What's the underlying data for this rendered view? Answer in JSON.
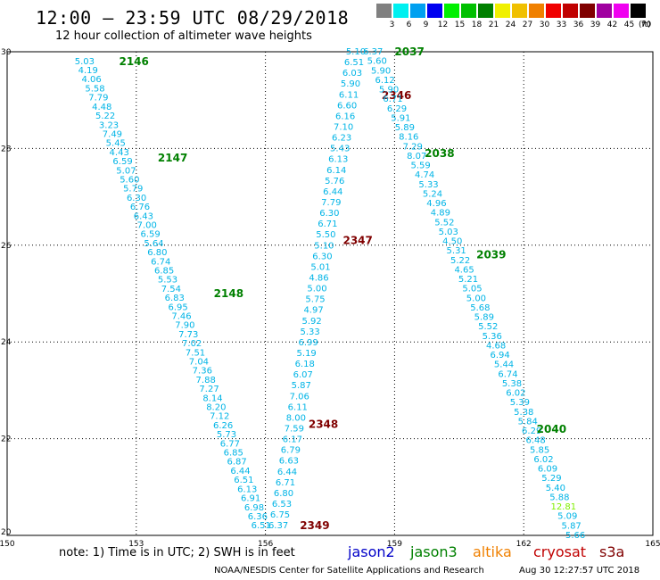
{
  "header": {
    "title": "12:00 – 23:59 UTC 08/29/2018",
    "subtitle": "12 hour collection of altimeter wave heights"
  },
  "legend": {
    "unit": "(ft)",
    "items": [
      {
        "label": "3",
        "color": "#808080"
      },
      {
        "label": "6",
        "color": "#00f0f0"
      },
      {
        "label": "9",
        "color": "#00a0f0"
      },
      {
        "label": "12",
        "color": "#0000f0"
      },
      {
        "label": "15",
        "color": "#00f000"
      },
      {
        "label": "18",
        "color": "#00c000"
      },
      {
        "label": "21",
        "color": "#008000"
      },
      {
        "label": "24",
        "color": "#f0f000"
      },
      {
        "label": "27",
        "color": "#f0c000"
      },
      {
        "label": "30",
        "color": "#f08000"
      },
      {
        "label": "33",
        "color": "#f00000"
      },
      {
        "label": "36",
        "color": "#c00000"
      },
      {
        "label": "39",
        "color": "#800000"
      },
      {
        "label": "42",
        "color": "#a000a0"
      },
      {
        "label": "45",
        "color": "#f000f0"
      },
      {
        "label": "70",
        "color": "#000000"
      }
    ]
  },
  "axes": {
    "lon_ticks": [
      "150",
      "153",
      "156",
      "159",
      "162",
      "165"
    ],
    "lat_ticks": [
      "20",
      "22",
      "24",
      "26",
      "28",
      "30"
    ],
    "lon_range": [
      150,
      165
    ],
    "lat_range": [
      20,
      30
    ],
    "grid": true
  },
  "colors": {
    "track": "#00b4e6",
    "green_label": "#008000",
    "red_label": "#800000",
    "light_green": "#80f000"
  },
  "tracks": [
    {
      "name": "track-1",
      "type": "descending",
      "start": [
        151.8,
        29.8
      ],
      "end": [
        155.9,
        20.2
      ],
      "values": [
        "5.03",
        "4.19",
        "4.06",
        "5.58",
        "7.79",
        "4.48",
        "5.22",
        "3.23",
        "7.49",
        "5.45",
        "4.43",
        "6.59",
        "5.07",
        "5.60",
        "5.79",
        "6.30",
        "6.76",
        "6.43",
        "7.00",
        "6.59",
        "5.64",
        "6.80",
        "6.74",
        "6.85",
        "5.53",
        "7.54",
        "6.83",
        "6.95",
        "7.46",
        "7.90",
        "7.73",
        "7.02",
        "7.51",
        "7.04",
        "7.36",
        "7.88",
        "7.27",
        "8.14",
        "8.20",
        "7.12",
        "6.26",
        "5.73",
        "6.77",
        "6.85",
        "6.87",
        "6.44",
        "6.51",
        "6.13",
        "6.91",
        "6.98",
        "6.36",
        "6.51"
      ],
      "times": [
        {
          "label": "2146",
          "lat": 29.8,
          "lon": 152.6,
          "color": "green"
        },
        {
          "label": "2147",
          "lat": 27.8,
          "lon": 153.5,
          "color": "green"
        },
        {
          "label": "2148",
          "lat": 25.0,
          "lon": 154.8,
          "color": "green"
        }
      ]
    },
    {
      "name": "track-2",
      "type": "ascending",
      "start": [
        156.3,
        20.2
      ],
      "end": [
        158.1,
        30.0
      ],
      "values": [
        "6.37",
        "6.75",
        "6.53",
        "6.80",
        "6.71",
        "6.44",
        "6.63",
        "6.79",
        "6.17",
        "7.59",
        "8.00",
        "6.11",
        "7.06",
        "5.87",
        "6.07",
        "6.18",
        "5.19",
        "6.99",
        "5.33",
        "5.92",
        "4.97",
        "5.75",
        "5.00",
        "4.86",
        "5.01",
        "6.30",
        "5.10",
        "5.50",
        "6.71",
        "6.30",
        "7.79",
        "6.44",
        "5.76",
        "6.14",
        "6.13",
        "5.43",
        "6.23",
        "7.10",
        "6.16",
        "6.60",
        "6.11",
        "5.90",
        "6.03",
        "6.51",
        "5.10"
      ],
      "times": [
        {
          "label": "2349",
          "lat": 20.2,
          "lon": 156.8,
          "color": "red"
        },
        {
          "label": "2348",
          "lat": 22.3,
          "lon": 157.0,
          "color": "red"
        },
        {
          "label": "2347",
          "lat": 26.1,
          "lon": 157.8,
          "color": "red"
        },
        {
          "label": "2346",
          "lat": 29.1,
          "lon": 158.7,
          "color": "red"
        }
      ]
    },
    {
      "name": "track-3",
      "type": "descending",
      "start": [
        158.5,
        30.0
      ],
      "end": [
        163.2,
        20.0
      ],
      "values": [
        "6.37",
        "5.60",
        "5.90",
        "6.12",
        "5.90",
        "6.71",
        "6.29",
        "5.91",
        "5.89",
        "8.16",
        "7.29",
        "8.07",
        "5.59",
        "4.74",
        "5.33",
        "5.24",
        "4.96",
        "4.89",
        "5.52",
        "5.03",
        "4.50",
        "5.31",
        "5.22",
        "4.65",
        "5.21",
        "5.05",
        "5.00",
        "5.68",
        "5.89",
        "5.52",
        "5.36",
        "4.68",
        "6.94",
        "5.44",
        "6.74",
        "5.38",
        "6.02",
        "5.39",
        "5.38",
        "5.84",
        "6.29",
        "6.48",
        "5.85",
        "6.02",
        "6.09",
        "5.29",
        "5.40",
        "5.88",
        "12.81",
        "5.09",
        "5.87",
        "5.66"
      ],
      "times": [
        {
          "label": "2037",
          "lat": 30.0,
          "lon": 159.0,
          "color": "green"
        },
        {
          "label": "2038",
          "lat": 27.9,
          "lon": 159.7,
          "color": "green"
        },
        {
          "label": "2039",
          "lat": 25.8,
          "lon": 160.9,
          "color": "green"
        },
        {
          "label": "2040",
          "lat": 22.2,
          "lon": 162.3,
          "color": "green"
        }
      ]
    }
  ],
  "footer": {
    "note": "note: 1) Time is in UTC; 2) SWH is in feet",
    "satellites": [
      {
        "label": "jason2",
        "color": "#0000c8"
      },
      {
        "label": "jason3",
        "color": "#008000"
      },
      {
        "label": "altika",
        "color": "#f08000"
      },
      {
        "label": "cryosat",
        "color": "#c00000"
      },
      {
        "label": "s3a",
        "color": "#800000"
      }
    ],
    "credit": "NOAA/NESDIS Center for Satellite Applications and Research",
    "stamp": "Aug 30 12:27:57 UTC 2018"
  }
}
